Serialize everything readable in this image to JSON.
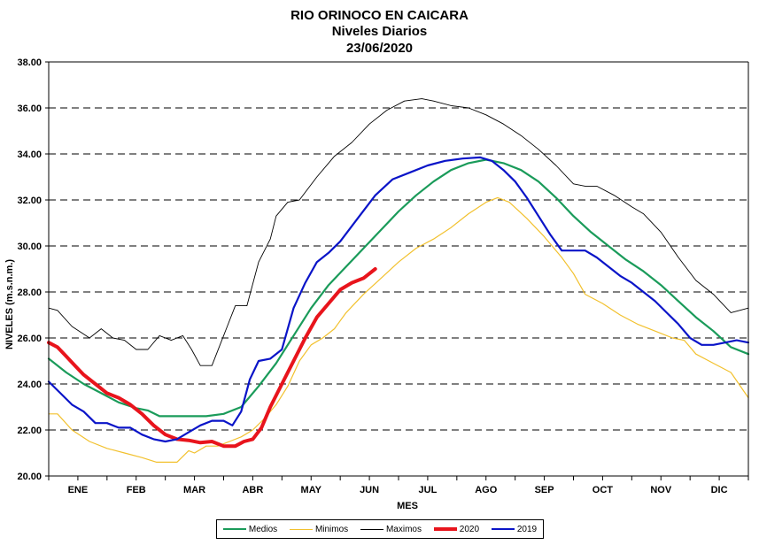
{
  "chart_data": {
    "type": "line",
    "title": "RIO ORINOCO EN CAICARA",
    "subtitle": "Niveles Diarios",
    "date": "23/06/2020",
    "xlabel": "MES",
    "ylabel": "NIVELES  (m.s.n.m.)",
    "xlim": [
      0,
      12
    ],
    "ylim": [
      20,
      38
    ],
    "yticks": [
      "20.00",
      "22.00",
      "24.00",
      "26.00",
      "28.00",
      "30.00",
      "32.00",
      "34.00",
      "36.00",
      "38.00"
    ],
    "ytick_values": [
      20,
      22,
      24,
      26,
      28,
      30,
      32,
      34,
      36,
      38
    ],
    "categories": [
      "ENE",
      "FEB",
      "MAR",
      "ABR",
      "MAY",
      "JUN",
      "JUL",
      "AGO",
      "SEP",
      "OCT",
      "NOV",
      "DIC"
    ],
    "grid": "horizontal-dashed",
    "legend_position": "bottom",
    "x_units": "months elapsed from Jan 1",
    "series": [
      {
        "name": "Medios",
        "color": "#1a9b5a",
        "width": 2.2,
        "x": [
          0,
          0.3,
          0.6,
          0.9,
          1.2,
          1.5,
          1.7,
          1.9,
          2.3,
          2.7,
          3.0,
          3.3,
          3.6,
          3.9,
          4.2,
          4.5,
          4.8,
          5.1,
          5.4,
          5.7,
          6.0,
          6.3,
          6.6,
          6.9,
          7.2,
          7.5,
          7.8,
          8.1,
          8.4,
          8.7,
          9.0,
          9.3,
          9.6,
          9.9,
          10.2,
          10.5,
          10.8,
          11.1,
          11.4,
          11.7,
          12.0
        ],
        "y": [
          25.1,
          24.5,
          24.0,
          23.6,
          23.2,
          22.95,
          22.85,
          22.6,
          22.6,
          22.6,
          22.7,
          23.0,
          23.9,
          24.9,
          26.1,
          27.3,
          28.3,
          29.1,
          29.9,
          30.7,
          31.5,
          32.2,
          32.8,
          33.3,
          33.6,
          33.75,
          33.6,
          33.3,
          32.8,
          32.1,
          31.3,
          30.6,
          30.0,
          29.4,
          28.9,
          28.3,
          27.6,
          26.9,
          26.3,
          25.6,
          25.3
        ]
      },
      {
        "name": "Minimos",
        "color": "#f2c12e",
        "width": 1.2,
        "x": [
          0,
          0.15,
          0.4,
          0.7,
          1.0,
          1.3,
          1.6,
          1.85,
          2.2,
          2.4,
          2.5,
          2.7,
          2.9,
          3.1,
          3.3,
          3.5,
          3.7,
          3.9,
          4.1,
          4.3,
          4.5,
          4.7,
          4.9,
          5.1,
          5.4,
          5.7,
          6.0,
          6.3,
          6.6,
          6.9,
          7.2,
          7.5,
          7.7,
          7.9,
          8.2,
          8.5,
          8.8,
          9.0,
          9.2,
          9.5,
          9.8,
          10.1,
          10.4,
          10.7,
          10.9,
          11.1,
          11.4,
          11.7,
          12.0
        ],
        "y": [
          22.7,
          22.7,
          22.0,
          21.5,
          21.2,
          21.0,
          20.8,
          20.6,
          20.6,
          21.1,
          21.0,
          21.3,
          21.3,
          21.5,
          21.7,
          22.0,
          22.5,
          23.1,
          23.9,
          25.0,
          25.7,
          26.0,
          26.4,
          27.1,
          27.9,
          28.6,
          29.3,
          29.9,
          30.3,
          30.8,
          31.4,
          31.9,
          32.1,
          31.9,
          31.2,
          30.4,
          29.5,
          28.8,
          27.9,
          27.5,
          27.0,
          26.6,
          26.3,
          26.0,
          25.9,
          25.3,
          24.9,
          24.5,
          23.4
        ]
      },
      {
        "name": "Maximos",
        "color": "#000000",
        "width": 0.9,
        "x": [
          0,
          0.15,
          0.4,
          0.7,
          0.9,
          1.1,
          1.3,
          1.5,
          1.7,
          1.9,
          2.1,
          2.3,
          2.45,
          2.6,
          2.8,
          3.0,
          3.2,
          3.4,
          3.6,
          3.8,
          3.9,
          4.1,
          4.3,
          4.6,
          4.9,
          5.2,
          5.5,
          5.8,
          6.1,
          6.4,
          6.6,
          6.9,
          7.2,
          7.5,
          7.8,
          8.1,
          8.4,
          8.7,
          9.0,
          9.2,
          9.4,
          9.7,
          10.0,
          10.2,
          10.5,
          10.8,
          11.1,
          11.4,
          11.7,
          12.0
        ],
        "y": [
          27.3,
          27.2,
          26.5,
          26.0,
          26.4,
          26.0,
          25.9,
          25.5,
          25.5,
          26.1,
          25.9,
          26.1,
          25.5,
          24.8,
          24.8,
          26.1,
          27.4,
          27.4,
          29.3,
          30.3,
          31.3,
          31.9,
          32.0,
          33.0,
          33.9,
          34.5,
          35.3,
          35.9,
          36.3,
          36.4,
          36.3,
          36.1,
          36.0,
          35.7,
          35.3,
          34.8,
          34.2,
          33.5,
          32.7,
          32.6,
          32.6,
          32.2,
          31.7,
          31.4,
          30.6,
          29.5,
          28.5,
          27.9,
          27.1,
          27.3
        ]
      },
      {
        "name": "2020",
        "color": "#e8141c",
        "width": 4,
        "x": [
          0,
          0.15,
          0.3,
          0.45,
          0.6,
          0.8,
          1.0,
          1.2,
          1.4,
          1.6,
          1.8,
          2.0,
          2.2,
          2.4,
          2.6,
          2.8,
          3.0,
          3.2,
          3.35,
          3.5,
          3.65,
          3.8,
          4.0,
          4.2,
          4.4,
          4.6,
          4.8,
          5.0,
          5.2,
          5.4,
          5.6
        ],
        "y": [
          25.8,
          25.6,
          25.2,
          24.8,
          24.4,
          24.0,
          23.6,
          23.4,
          23.1,
          22.7,
          22.2,
          21.8,
          21.6,
          21.55,
          21.45,
          21.5,
          21.3,
          21.3,
          21.5,
          21.6,
          22.1,
          23.0,
          24.0,
          25.0,
          26.0,
          26.9,
          27.5,
          28.1,
          28.4,
          28.6,
          29.0
        ]
      },
      {
        "name": "2019",
        "color": "#0a14c8",
        "width": 2.2,
        "x": [
          0,
          0.2,
          0.4,
          0.6,
          0.8,
          1.0,
          1.2,
          1.4,
          1.6,
          1.8,
          2.0,
          2.2,
          2.4,
          2.6,
          2.8,
          3.0,
          3.15,
          3.3,
          3.45,
          3.6,
          3.8,
          4.0,
          4.2,
          4.4,
          4.6,
          4.8,
          5.0,
          5.3,
          5.6,
          5.9,
          6.2,
          6.5,
          6.8,
          7.1,
          7.4,
          7.6,
          7.8,
          8.0,
          8.2,
          8.4,
          8.6,
          8.8,
          9.0,
          9.2,
          9.4,
          9.6,
          9.8,
          10.0,
          10.2,
          10.4,
          10.6,
          10.8,
          11.0,
          11.2,
          11.4,
          11.6,
          11.8,
          12.0
        ],
        "y": [
          24.1,
          23.6,
          23.1,
          22.8,
          22.3,
          22.3,
          22.1,
          22.1,
          21.8,
          21.6,
          21.5,
          21.6,
          21.9,
          22.2,
          22.4,
          22.4,
          22.2,
          22.8,
          24.2,
          25.0,
          25.1,
          25.5,
          27.3,
          28.4,
          29.3,
          29.7,
          30.2,
          31.2,
          32.2,
          32.9,
          33.2,
          33.5,
          33.7,
          33.8,
          33.85,
          33.7,
          33.3,
          32.8,
          32.1,
          31.3,
          30.5,
          29.8,
          29.8,
          29.8,
          29.5,
          29.1,
          28.7,
          28.4,
          28.0,
          27.6,
          27.1,
          26.6,
          26.0,
          25.7,
          25.7,
          25.8,
          25.9,
          25.8
        ]
      }
    ]
  },
  "legend": {
    "items": [
      {
        "label": "Medios",
        "color": "#1a9b5a",
        "width": 2
      },
      {
        "label": "Minimos",
        "color": "#f2c12e",
        "width": 1
      },
      {
        "label": "Maximos",
        "color": "#000000",
        "width": 1
      },
      {
        "label": "2020",
        "color": "#e8141c",
        "width": 4
      },
      {
        "label": "2019",
        "color": "#0a14c8",
        "width": 2
      }
    ]
  }
}
